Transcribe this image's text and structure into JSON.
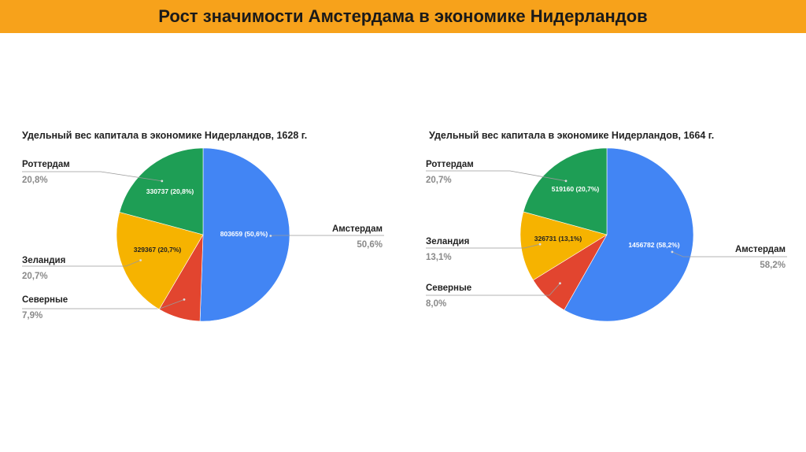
{
  "page": {
    "title": "Рост значимости Амстердама в экономике Нидерландов"
  },
  "colors": {
    "banner": "#f7a21b",
    "amsterdam": "#4285f4",
    "rotterdam": "#1e9e55",
    "zeeland": "#f6b300",
    "north": "#e2452f"
  },
  "chart_data": [
    {
      "type": "pie",
      "title": "Удельный вес капитала в экономике Нидерландов, 1628 г.",
      "slices": [
        {
          "name": "Амстердам",
          "value": 803659,
          "percent": "50,6%",
          "inner_label": "803659 (50,6%)",
          "color": "#4285f4"
        },
        {
          "name": "Северные",
          "value": 125471,
          "percent": "7,9%",
          "inner_label": "",
          "color": "#e2452f"
        },
        {
          "name": "Зеландия",
          "value": 329367,
          "percent": "20,7%",
          "inner_label": "329367 (20,7%)",
          "color": "#f6b300"
        },
        {
          "name": "Роттердам",
          "value": 330737,
          "percent": "20,8%",
          "inner_label": "330737 (20,8%)",
          "color": "#1e9e55"
        }
      ]
    },
    {
      "type": "pie",
      "title": "Удельный вес капитала в экономике Нидерландов, 1664 г.",
      "slices": [
        {
          "name": "Амстердам",
          "value": 1456782,
          "percent": "58,2%",
          "inner_label": "1456782 (58,2%)",
          "color": "#4285f4"
        },
        {
          "name": "Северные",
          "value": 200233,
          "percent": "8,0%",
          "inner_label": "",
          "color": "#e2452f"
        },
        {
          "name": "Зеландия",
          "value": 326731,
          "percent": "13,1%",
          "inner_label": "326731 (13,1%)",
          "color": "#f6b300"
        },
        {
          "name": "Роттердам",
          "value": 519160,
          "percent": "20,7%",
          "inner_label": "519160 (20,7%)",
          "color": "#1e9e55"
        }
      ]
    }
  ]
}
